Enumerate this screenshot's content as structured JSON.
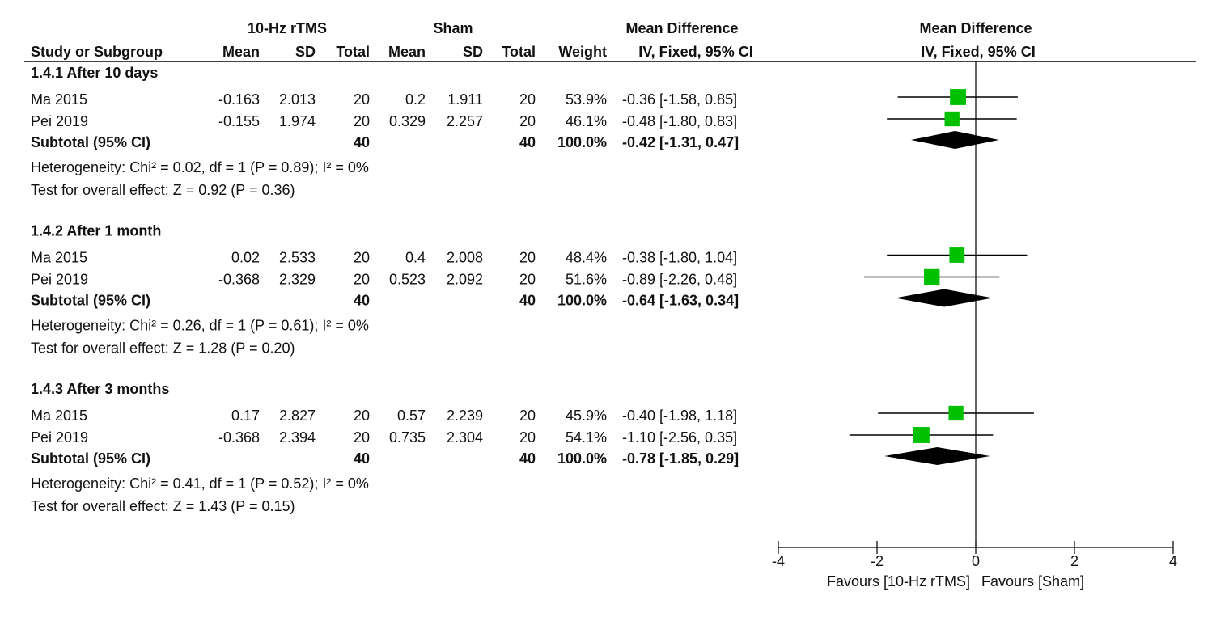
{
  "chart_data": {
    "type": "forest",
    "header": {
      "experimental": "10-Hz rTMS",
      "control": "Sham",
      "effect_table": "Mean Difference",
      "effect_plot": "Mean Difference",
      "columns": [
        "Study or Subgroup",
        "Mean",
        "SD",
        "Total",
        "Mean",
        "SD",
        "Total",
        "Weight",
        "IV, Fixed, 95% CI"
      ],
      "plot_method": "IV, Fixed, 95% CI"
    },
    "groups": [
      {
        "title": "1.4.1 After 10 days",
        "studies": [
          {
            "study": "Ma 2015",
            "exp_mean": -0.163,
            "exp_sd": 2.013,
            "exp_total": 20,
            "ctl_mean": 0.2,
            "ctl_sd": 1.911,
            "ctl_total": 20,
            "weight": 53.9,
            "weight_label": "53.9%",
            "md": -0.36,
            "ci_low": -1.58,
            "ci_high": 0.85,
            "ci_label": "-0.36 [-1.58, 0.85]"
          },
          {
            "study": "Pei 2019",
            "exp_mean": -0.155,
            "exp_sd": 1.974,
            "exp_total": 20,
            "ctl_mean": 0.329,
            "ctl_sd": 2.257,
            "ctl_total": 20,
            "weight": 46.1,
            "weight_label": "46.1%",
            "md": -0.48,
            "ci_low": -1.8,
            "ci_high": 0.83,
            "ci_label": "-0.48 [-1.80, 0.83]"
          }
        ],
        "subtotal": {
          "label": "Subtotal (95% CI)",
          "exp_total": 40,
          "ctl_total": 40,
          "weight": 100.0,
          "weight_label": "100.0%",
          "md": -0.42,
          "ci_low": -1.31,
          "ci_high": 0.47,
          "ci_label": "-0.42 [-1.31, 0.47]"
        },
        "heterogeneity": "Heterogeneity: Chi² = 0.02, df = 1 (P = 0.89); I² = 0%",
        "overall": "Test for overall effect: Z = 0.92 (P = 0.36)"
      },
      {
        "title": "1.4.2 After 1 month",
        "studies": [
          {
            "study": "Ma 2015",
            "exp_mean": 0.02,
            "exp_sd": 2.533,
            "exp_total": 20,
            "ctl_mean": 0.4,
            "ctl_sd": 2.008,
            "ctl_total": 20,
            "weight": 48.4,
            "weight_label": "48.4%",
            "md": -0.38,
            "ci_low": -1.8,
            "ci_high": 1.04,
            "ci_label": "-0.38 [-1.80, 1.04]"
          },
          {
            "study": "Pei 2019",
            "exp_mean": -0.368,
            "exp_sd": 2.329,
            "exp_total": 20,
            "ctl_mean": 0.523,
            "ctl_sd": 2.092,
            "ctl_total": 20,
            "weight": 51.6,
            "weight_label": "51.6%",
            "md": -0.89,
            "ci_low": -2.26,
            "ci_high": 0.48,
            "ci_label": "-0.89 [-2.26, 0.48]"
          }
        ],
        "subtotal": {
          "label": "Subtotal (95% CI)",
          "exp_total": 40,
          "ctl_total": 40,
          "weight": 100.0,
          "weight_label": "100.0%",
          "md": -0.64,
          "ci_low": -1.63,
          "ci_high": 0.34,
          "ci_label": "-0.64 [-1.63, 0.34]"
        },
        "heterogeneity": "Heterogeneity: Chi² = 0.26, df = 1 (P = 0.61); I² = 0%",
        "overall": "Test for overall effect: Z = 1.28 (P = 0.20)"
      },
      {
        "title": "1.4.3 After 3 months",
        "studies": [
          {
            "study": "Ma 2015",
            "exp_mean": 0.17,
            "exp_sd": 2.827,
            "exp_total": 20,
            "ctl_mean": 0.57,
            "ctl_sd": 2.239,
            "ctl_total": 20,
            "weight": 45.9,
            "weight_label": "45.9%",
            "md": -0.4,
            "ci_low": -1.98,
            "ci_high": 1.18,
            "ci_label": "-0.40 [-1.98, 1.18]"
          },
          {
            "study": "Pei 2019",
            "exp_mean": -0.368,
            "exp_sd": 2.394,
            "exp_total": 20,
            "ctl_mean": 0.735,
            "ctl_sd": 2.304,
            "ctl_total": 20,
            "weight": 54.1,
            "weight_label": "54.1%",
            "md": -1.1,
            "ci_low": -2.56,
            "ci_high": 0.35,
            "ci_label": "-1.10 [-2.56, 0.35]"
          }
        ],
        "subtotal": {
          "label": "Subtotal (95% CI)",
          "exp_total": 40,
          "ctl_total": 40,
          "weight": 100.0,
          "weight_label": "100.0%",
          "md": -0.78,
          "ci_low": -1.85,
          "ci_high": 0.29,
          "ci_label": "-0.78 [-1.85, 0.29]"
        },
        "heterogeneity": "Heterogeneity: Chi² = 0.41, df = 1 (P = 0.52); I² = 0%",
        "overall": "Test for overall effect: Z = 1.43 (P = 0.15)"
      }
    ],
    "xlim": [
      -4,
      4
    ],
    "xticks": [
      -4,
      -2,
      0,
      2,
      4
    ],
    "favours_left": "Favours [10-Hz rTMS]",
    "favours_right": "Favours [Sham]",
    "square_color": "#00c000",
    "diamond_color": "#000000"
  }
}
